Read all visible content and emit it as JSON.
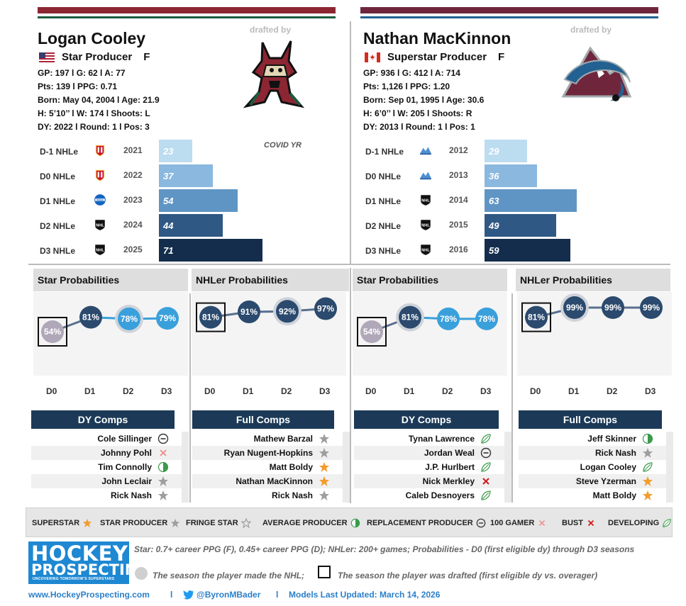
{
  "colors": {
    "coyotes_maroon": "#8c2633",
    "coyotes_green": "#1e5b3f",
    "avs_burgundy": "#6f263d",
    "avs_blue": "#236192",
    "navy": "#1c3a57",
    "prob_dark": "#2b4a6e",
    "prob_light": "#3aa0dc",
    "prob_grey": "#b0a8b9",
    "star_orange": "#f39c2c",
    "star_grey": "#9e9e9e"
  },
  "players": [
    {
      "name": "Logan Cooley",
      "drafted_by_label": "drafted by",
      "team_logo": "coyote-logo",
      "flag": "usa-flag",
      "role": "Star Producer",
      "position": "F",
      "stats": [
        "GP: 197 l G: 62 l A: 77",
        "Pts: 139 l PPG: 0.71",
        "Born: May 04, 2004 l Age: 21.9",
        "H: 5’10’’ l W: 174 l Shoots: L",
        "DY: 2022 l Round: 1 l Pos: 3"
      ],
      "covid_note": "COVID YR",
      "nhle": [
        {
          "label": "D-1 NHLe",
          "league_icon": "ntdp-logo",
          "year": "2021",
          "value": 23
        },
        {
          "label": "D0 NHLe",
          "league_icon": "ntdp-logo",
          "year": "2022",
          "value": 37
        },
        {
          "label": "D1 NHLe",
          "league_icon": "ncaa-logo",
          "year": "2023",
          "value": 54
        },
        {
          "label": "D2 NHLe",
          "league_icon": "nhl-logo",
          "year": "2024",
          "value": 44
        },
        {
          "label": "D3 NHLe",
          "league_icon": "nhl-logo",
          "year": "2025",
          "value": 71
        }
      ],
      "star_prob": {
        "title": "Star Probabilities",
        "points": [
          {
            "d": "D0",
            "value": 54,
            "label": "54%",
            "style": "grey",
            "drafted": true
          },
          {
            "d": "D1",
            "value": 81,
            "label": "81%",
            "style": "dark",
            "drafted": false
          },
          {
            "d": "D2",
            "value": 78,
            "label": "78%",
            "style": "light-nhl",
            "drafted": false
          },
          {
            "d": "D3",
            "value": 79,
            "label": "79%",
            "style": "light",
            "drafted": false
          }
        ]
      },
      "nhler_prob": {
        "title": "NHLer Probabilities",
        "points": [
          {
            "d": "D0",
            "value": 81,
            "label": "81%",
            "style": "dark",
            "drafted": true
          },
          {
            "d": "D1",
            "value": 91,
            "label": "91%",
            "style": "dark",
            "drafted": false
          },
          {
            "d": "D2",
            "value": 92,
            "label": "92%",
            "style": "dark-nhl",
            "drafted": false
          },
          {
            "d": "D3",
            "value": 97,
            "label": "97%",
            "style": "dark",
            "drafted": false
          }
        ]
      },
      "dy_comps": {
        "title": "DY Comps",
        "items": [
          {
            "name": "Cole Sillinger",
            "icon": "replacement-icon"
          },
          {
            "name": "Johnny Pohl",
            "icon": "100-gamer-icon"
          },
          {
            "name": "Tim Connolly",
            "icon": "average-producer-icon"
          },
          {
            "name": "John Leclair",
            "icon": "star-producer-icon"
          },
          {
            "name": "Rick Nash",
            "icon": "star-producer-icon"
          }
        ]
      },
      "full_comps": {
        "title": "Full Comps",
        "items": [
          {
            "name": "Mathew Barzal",
            "icon": "star-producer-icon"
          },
          {
            "name": "Ryan Nugent-Hopkins",
            "icon": "star-producer-icon"
          },
          {
            "name": "Matt Boldy",
            "icon": "superstar-icon"
          },
          {
            "name": "Nathan MacKinnon",
            "icon": "superstar-icon"
          },
          {
            "name": "Rick Nash",
            "icon": "star-producer-icon"
          }
        ]
      }
    },
    {
      "name": "Nathan MacKinnon",
      "drafted_by_label": "drafted by",
      "team_logo": "avalanche-logo",
      "flag": "canada-flag",
      "role": "Superstar Producer",
      "position": "F",
      "stats": [
        "GP: 936 l G: 412 l A: 714",
        "Pts: 1,126 l PPG: 1.20",
        "Born: Sep 01, 1995 l Age: 30.6",
        "H: 6’0’’ l W: 205 l Shoots: R",
        "DY: 2013 l Round: 1 l Pos: 1"
      ],
      "covid_note": "",
      "nhle": [
        {
          "label": "D-1 NHLe",
          "league_icon": "qmjhl-logo",
          "year": "2012",
          "value": 29
        },
        {
          "label": "D0 NHLe",
          "league_icon": "qmjhl-logo",
          "year": "2013",
          "value": 36
        },
        {
          "label": "D1 NHLe",
          "league_icon": "nhl-logo",
          "year": "2014",
          "value": 63
        },
        {
          "label": "D2 NHLe",
          "league_icon": "nhl-logo",
          "year": "2015",
          "value": 49
        },
        {
          "label": "D3 NHLe",
          "league_icon": "nhl-logo",
          "year": "2016",
          "value": 59
        }
      ],
      "star_prob": {
        "title": "Star Probabilities",
        "points": [
          {
            "d": "D0",
            "value": 54,
            "label": "54%",
            "style": "grey",
            "drafted": true
          },
          {
            "d": "D1",
            "value": 81,
            "label": "81%",
            "style": "dark-nhl",
            "drafted": false
          },
          {
            "d": "D2",
            "value": 78,
            "label": "78%",
            "style": "light",
            "drafted": false
          },
          {
            "d": "D3",
            "value": 78,
            "label": "78%",
            "style": "light",
            "drafted": false
          }
        ]
      },
      "nhler_prob": {
        "title": "NHLer Probabilities",
        "points": [
          {
            "d": "D0",
            "value": 81,
            "label": "81%",
            "style": "dark",
            "drafted": true
          },
          {
            "d": "D1",
            "value": 99,
            "label": "99%",
            "style": "dark-nhl",
            "drafted": false
          },
          {
            "d": "D2",
            "value": 99,
            "label": "99%",
            "style": "dark",
            "drafted": false
          },
          {
            "d": "D3",
            "value": 99,
            "label": "99%",
            "style": "dark",
            "drafted": false
          }
        ]
      },
      "dy_comps": {
        "title": "DY Comps",
        "items": [
          {
            "name": "Tynan Lawrence",
            "icon": "developing-icon"
          },
          {
            "name": "Jordan Weal",
            "icon": "replacement-icon"
          },
          {
            "name": "J.P. Hurlbert",
            "icon": "developing-icon"
          },
          {
            "name": "Nick Merkley",
            "icon": "bust-icon"
          },
          {
            "name": "Caleb Desnoyers",
            "icon": "developing-icon"
          }
        ]
      },
      "full_comps": {
        "title": "Full Comps",
        "items": [
          {
            "name": "Jeff Skinner",
            "icon": "average-producer-icon"
          },
          {
            "name": "Rick Nash",
            "icon": "star-producer-icon"
          },
          {
            "name": "Logan Cooley",
            "icon": "developing-icon"
          },
          {
            "name": "Steve Yzerman",
            "icon": "superstar-icon"
          },
          {
            "name": "Matt Boldy",
            "icon": "superstar-icon"
          }
        ]
      }
    }
  ],
  "legend": [
    {
      "label": "SUPERSTAR",
      "icon": "superstar-icon"
    },
    {
      "label": "STAR PRODUCER",
      "icon": "star-producer-icon"
    },
    {
      "label": "FRINGE STAR",
      "icon": "fringe-star-icon"
    },
    {
      "label": "AVERAGE PRODUCER",
      "icon": "average-producer-icon"
    },
    {
      "label": "REPLACEMENT PRODUCER",
      "icon": "replacement-icon"
    },
    {
      "label": "100 GAMER",
      "icon": "100-gamer-icon"
    },
    {
      "label": "BUST",
      "icon": "bust-icon"
    },
    {
      "label": "DEVELOPING",
      "icon": "developing-icon"
    }
  ],
  "branding": {
    "logo_line1": "HOCKEY",
    "logo_line2": "PROSPECTING",
    "logo_tagline": "UNCOVERING TOMORROW'S SUPERSTARS"
  },
  "notes": {
    "definition": "Star: 0.7+ career PPG (F), 0.45+ career PPG (D); NHLer: 200+ games; Probabilities - D0 (first eligible dy) through D3 seasons",
    "nhl_season": "The season the player made the NHL;",
    "drafted_season": "The season the player was drafted (first eligible dy vs. overager)"
  },
  "footer": {
    "website": "www.HockeyProspecting.com",
    "sep": "l",
    "twitter": "@ByronMBader",
    "updated": "Models Last Updated: March 14, 2026"
  },
  "nhle_max": 80,
  "d_labels": [
    "D0",
    "D1",
    "D2",
    "D3"
  ]
}
